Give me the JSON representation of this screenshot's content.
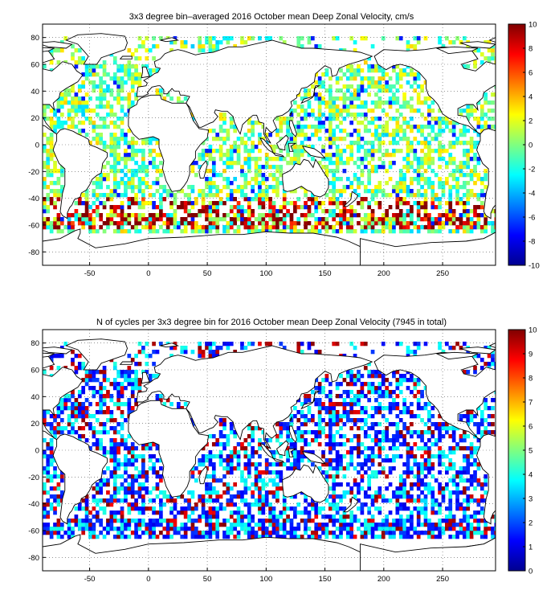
{
  "chart_data": [
    {
      "type": "heatmap",
      "title": "3x3 degree bin–averaged 2016 October mean Deep Zonal Velocity, cm/s",
      "xlim": [
        -90,
        295
      ],
      "ylim": [
        -90,
        90
      ],
      "x_ticks": [
        -50,
        0,
        50,
        100,
        150,
        200,
        250
      ],
      "y_ticks": [
        80,
        60,
        40,
        20,
        0,
        -20,
        -40,
        -60,
        -80
      ],
      "grid": true,
      "bin_size_deg": 3,
      "colorbar": {
        "min": -10,
        "max": 10,
        "ticks": [
          10,
          8,
          6,
          4,
          2,
          0,
          -2,
          -4,
          -6,
          -8,
          -10
        ],
        "colormap": "jet"
      },
      "field": "velocity"
    },
    {
      "type": "heatmap",
      "title": "N of cycles per 3x3 degree bin for 2016 October mean Deep Zonal Velocity (7945 in total)",
      "xlim": [
        -90,
        295
      ],
      "ylim": [
        -90,
        90
      ],
      "x_ticks": [
        -50,
        0,
        50,
        100,
        150,
        200,
        250
      ],
      "y_ticks": [
        80,
        60,
        40,
        20,
        0,
        -20,
        -40,
        -60,
        -80
      ],
      "grid": true,
      "bin_size_deg": 3,
      "colorbar": {
        "min": 0,
        "max": 10,
        "ticks": [
          10,
          9,
          8,
          7,
          6,
          5,
          4,
          3,
          2,
          1,
          0
        ],
        "colormap": "jet"
      },
      "field": "count"
    }
  ]
}
